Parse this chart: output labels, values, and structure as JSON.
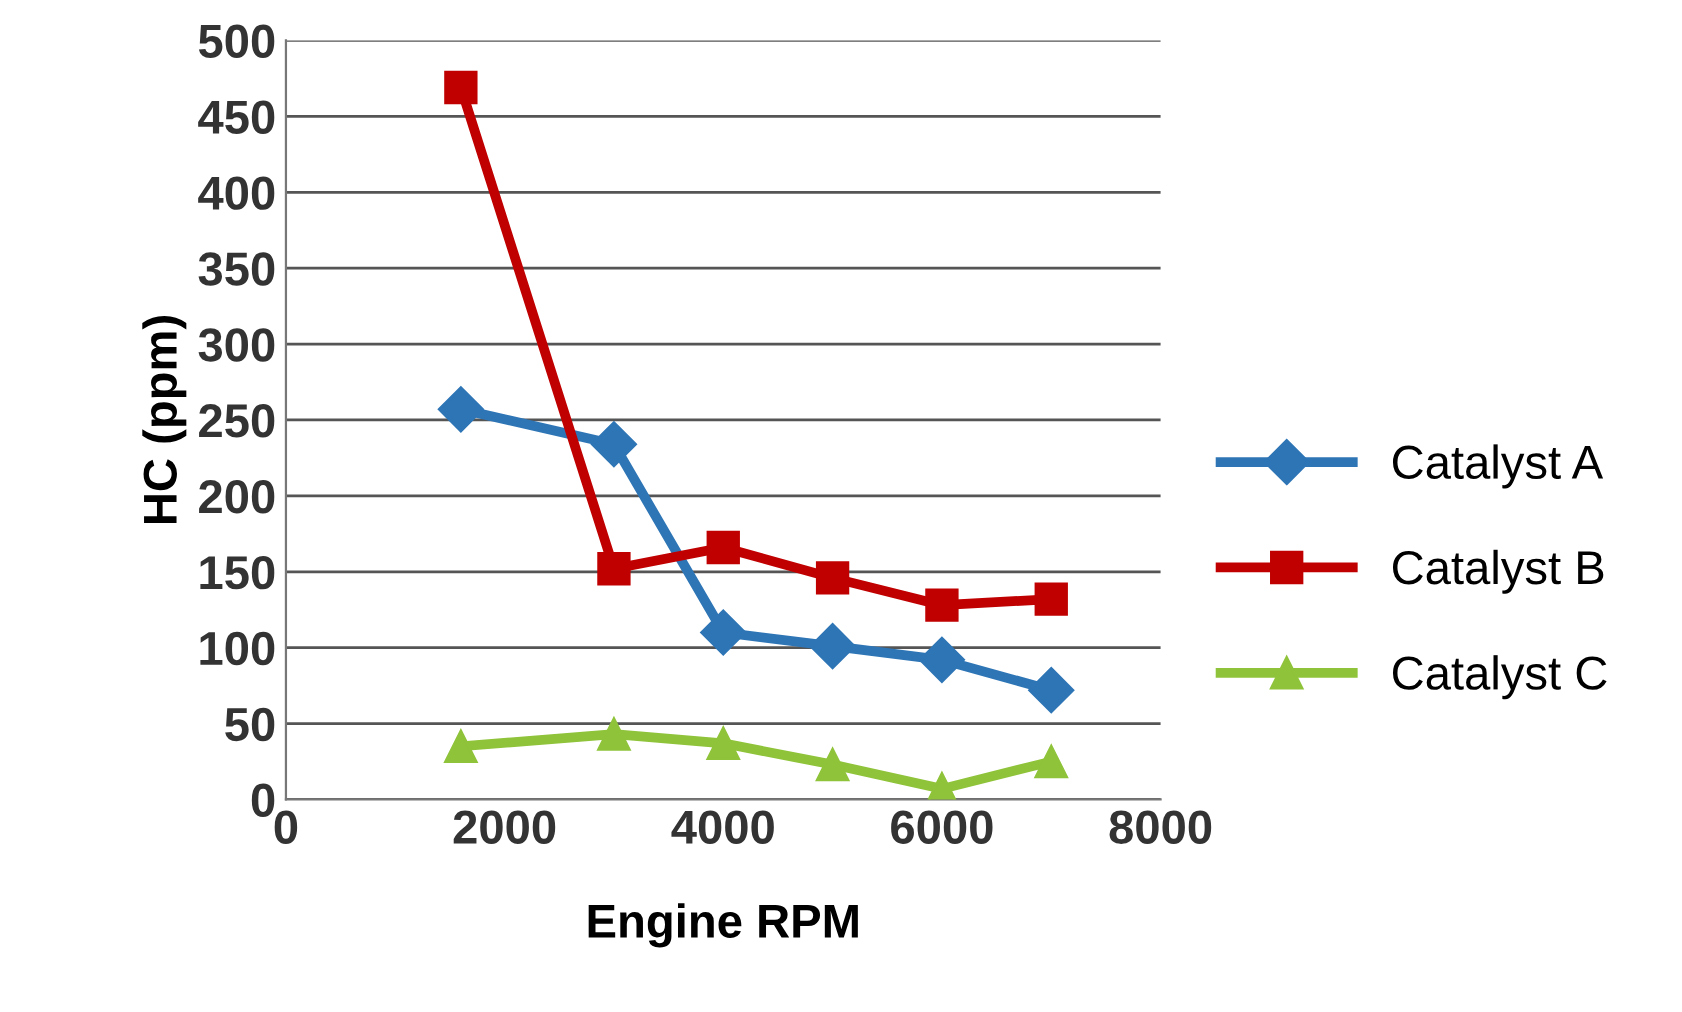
{
  "chart_data": {
    "type": "line",
    "xlabel": "Engine RPM",
    "ylabel": "HC (ppm)",
    "xlim": [
      0,
      8000
    ],
    "xticks": [
      0,
      2000,
      4000,
      6000,
      8000
    ],
    "ylim": [
      0,
      500
    ],
    "yticks": [
      0,
      50,
      100,
      150,
      200,
      250,
      300,
      350,
      400,
      450,
      500
    ],
    "grid": "y",
    "legend": "right",
    "series": [
      {
        "name": "Catalyst A",
        "color": "#2e75b6",
        "marker": "diamond",
        "x": [
          1600,
          3000,
          4000,
          5000,
          6000,
          7000
        ],
        "values": [
          257,
          234,
          110,
          101,
          92,
          72
        ]
      },
      {
        "name": "Catalyst B",
        "color": "#c00000",
        "marker": "square",
        "x": [
          1600,
          3000,
          4000,
          5000,
          6000,
          7000
        ],
        "values": [
          469,
          152,
          166,
          146,
          128,
          132
        ]
      },
      {
        "name": "Catalyst C",
        "color": "#8fc33a",
        "marker": "triangle",
        "x": [
          1600,
          3000,
          4000,
          5000,
          6000,
          7000
        ],
        "values": [
          35,
          43,
          37,
          23,
          7,
          25
        ]
      }
    ]
  }
}
